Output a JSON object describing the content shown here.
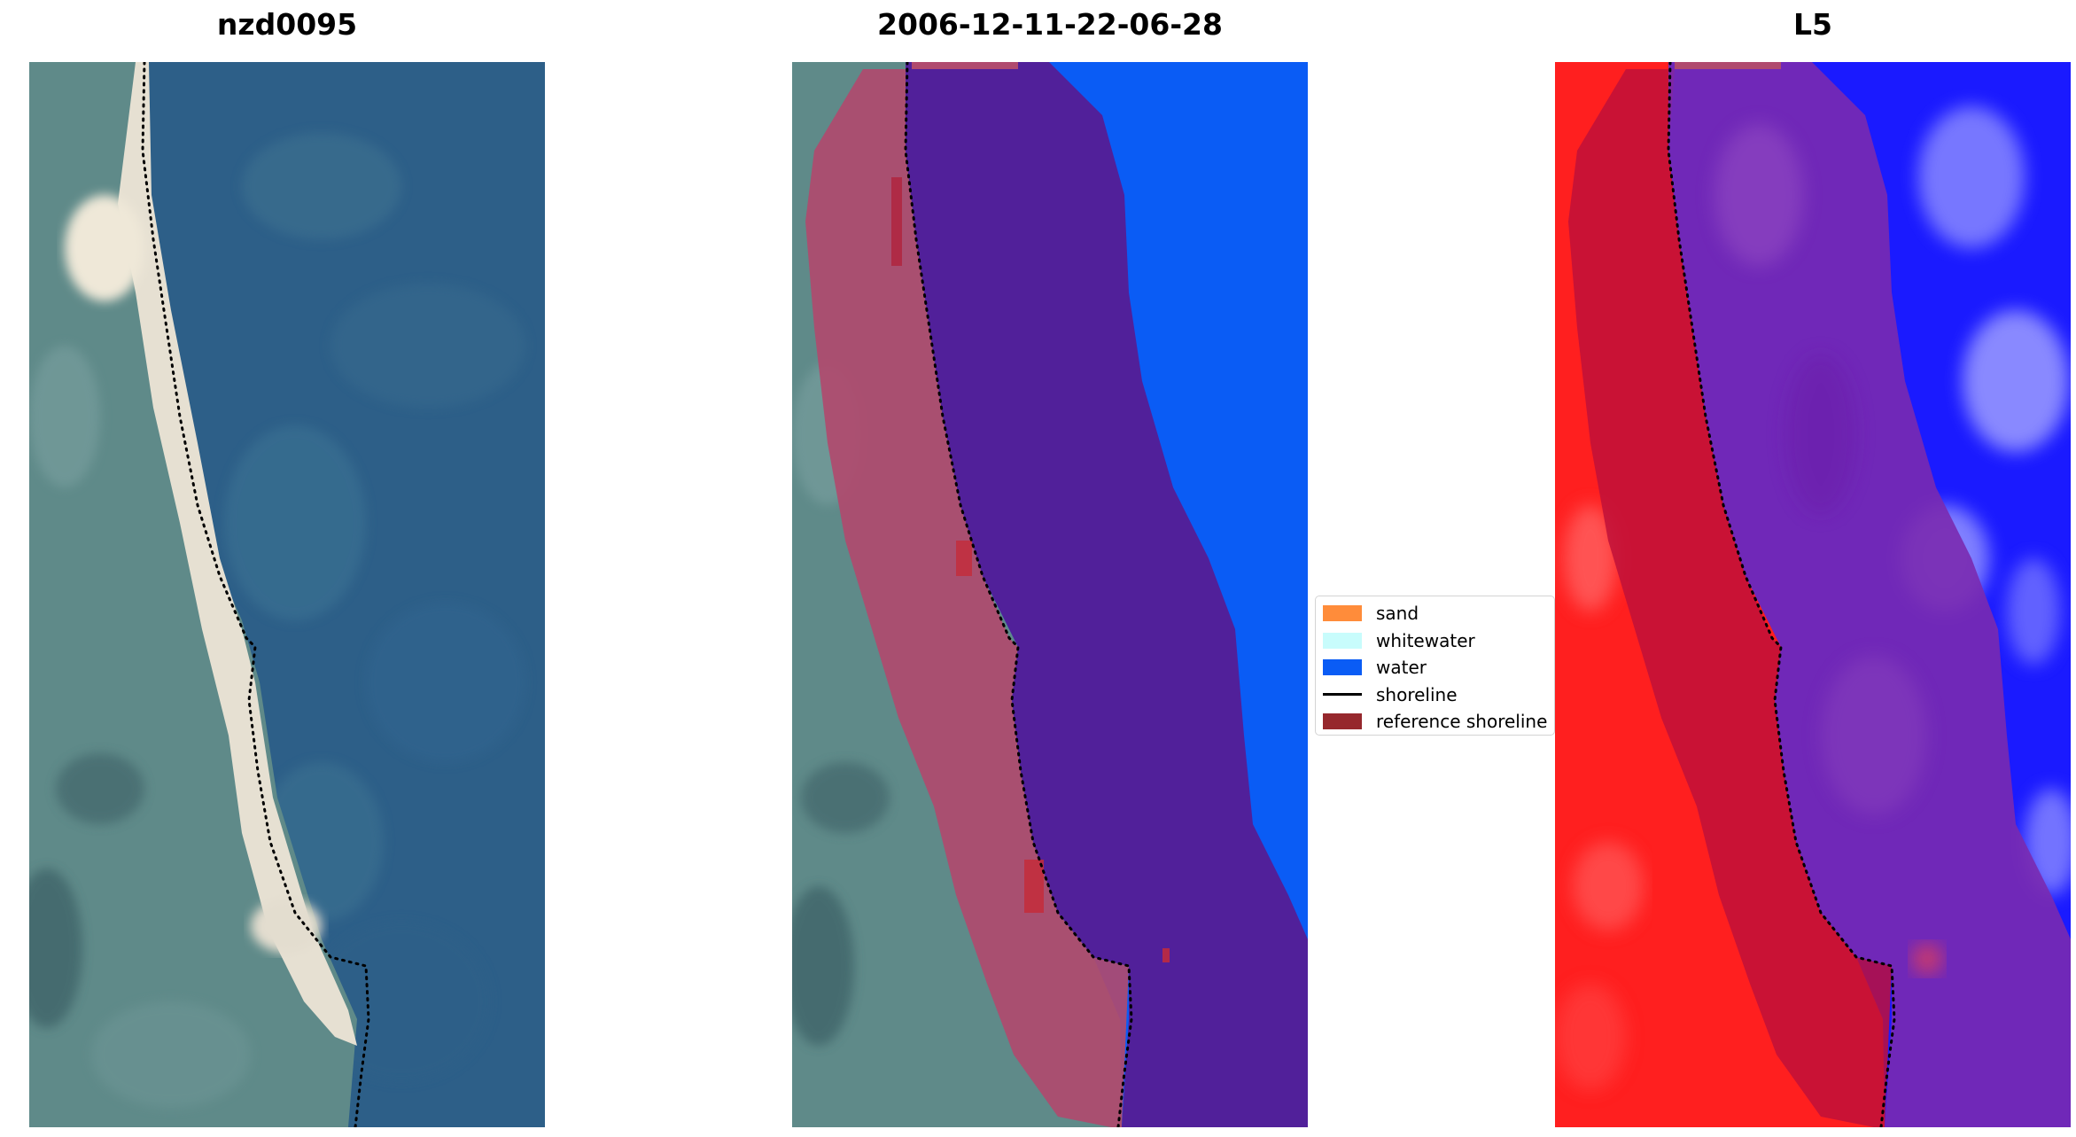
{
  "panels": [
    {
      "title": "nzd0095"
    },
    {
      "title": "2006-12-11-22-06-28"
    },
    {
      "title": "L5"
    }
  ],
  "legend": {
    "items": [
      {
        "label": "sand",
        "color": "#ff8c3a",
        "kind": "patch"
      },
      {
        "label": "whitewater",
        "color": "#c8fcfc",
        "kind": "patch"
      },
      {
        "label": "water",
        "color": "#0a5cf5",
        "kind": "patch"
      },
      {
        "label": "shoreline",
        "color": "#000000",
        "kind": "line"
      },
      {
        "label": "reference shoreline",
        "color": "#96282d",
        "kind": "patch"
      }
    ]
  },
  "colors": {
    "ocean": "#2c5f8a",
    "land": "#5e8a8a",
    "beach": "#e8e2d4",
    "water_class": "#0a5cf5",
    "water_buffer_overlay": "#51209a",
    "reference_overlay": "#b04a6e",
    "land_index": "#ff2020",
    "water_index": "#1a1aff"
  }
}
